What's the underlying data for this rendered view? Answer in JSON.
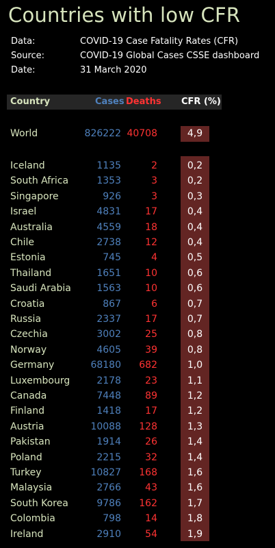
{
  "title": "Countries with low CFR",
  "meta": [
    {
      "key": "Data:",
      "value": "COVID-19 Case Fatality Rates (CFR)"
    },
    {
      "key": "Source:",
      "value": "COVID-19 Global Cases CSSE dashboard"
    },
    {
      "key": "Date:",
      "value": "31 March 2020"
    }
  ],
  "header": {
    "country": "Country",
    "cases": "Cases",
    "deaths": "Deaths",
    "cfr": "CFR (%)"
  },
  "colors": {
    "country": "#d7e4bd",
    "cases": "#4f81bd",
    "deaths": "#ff3333",
    "cfr_fill": "#632523",
    "header_bg": "#262626"
  },
  "world": {
    "country": "World",
    "cases": "826222",
    "deaths": "40708",
    "cfr": "4,9"
  },
  "rows": [
    {
      "country": "Iceland",
      "cases": "1135",
      "deaths": "2",
      "cfr": "0,2"
    },
    {
      "country": "South Africa",
      "cases": "1353",
      "deaths": "3",
      "cfr": "0,2"
    },
    {
      "country": "Singapore",
      "cases": "926",
      "deaths": "3",
      "cfr": "0,3"
    },
    {
      "country": "Israel",
      "cases": "4831",
      "deaths": "17",
      "cfr": "0,4"
    },
    {
      "country": "Australia",
      "cases": "4559",
      "deaths": "18",
      "cfr": "0,4"
    },
    {
      "country": "Chile",
      "cases": "2738",
      "deaths": "12",
      "cfr": "0,4"
    },
    {
      "country": "Estonia",
      "cases": "745",
      "deaths": "4",
      "cfr": "0,5"
    },
    {
      "country": "Thailand",
      "cases": "1651",
      "deaths": "10",
      "cfr": "0,6"
    },
    {
      "country": "Saudi Arabia",
      "cases": "1563",
      "deaths": "10",
      "cfr": "0,6"
    },
    {
      "country": "Croatia",
      "cases": "867",
      "deaths": "6",
      "cfr": "0,7"
    },
    {
      "country": "Russia",
      "cases": "2337",
      "deaths": "17",
      "cfr": "0,7"
    },
    {
      "country": "Czechia",
      "cases": "3002",
      "deaths": "25",
      "cfr": "0,8"
    },
    {
      "country": "Norway",
      "cases": "4605",
      "deaths": "39",
      "cfr": "0,8"
    },
    {
      "country": "Germany",
      "cases": "68180",
      "deaths": "682",
      "cfr": "1,0"
    },
    {
      "country": "Luxembourg",
      "cases": "2178",
      "deaths": "23",
      "cfr": "1,1"
    },
    {
      "country": "Canada",
      "cases": "7448",
      "deaths": "89",
      "cfr": "1,2"
    },
    {
      "country": "Finland",
      "cases": "1418",
      "deaths": "17",
      "cfr": "1,2"
    },
    {
      "country": "Austria",
      "cases": "10088",
      "deaths": "128",
      "cfr": "1,3"
    },
    {
      "country": "Pakistan",
      "cases": "1914",
      "deaths": "26",
      "cfr": "1,4"
    },
    {
      "country": "Poland",
      "cases": "2215",
      "deaths": "32",
      "cfr": "1,4"
    },
    {
      "country": "Turkey",
      "cases": "10827",
      "deaths": "168",
      "cfr": "1,6"
    },
    {
      "country": "Malaysia",
      "cases": "2766",
      "deaths": "43",
      "cfr": "1,6"
    },
    {
      "country": "South Korea",
      "cases": "9786",
      "deaths": "162",
      "cfr": "1,7"
    },
    {
      "country": "Colombia",
      "cases": "798",
      "deaths": "14",
      "cfr": "1,8"
    },
    {
      "country": "Ireland",
      "cases": "2910",
      "deaths": "54",
      "cfr": "1,9"
    }
  ]
}
